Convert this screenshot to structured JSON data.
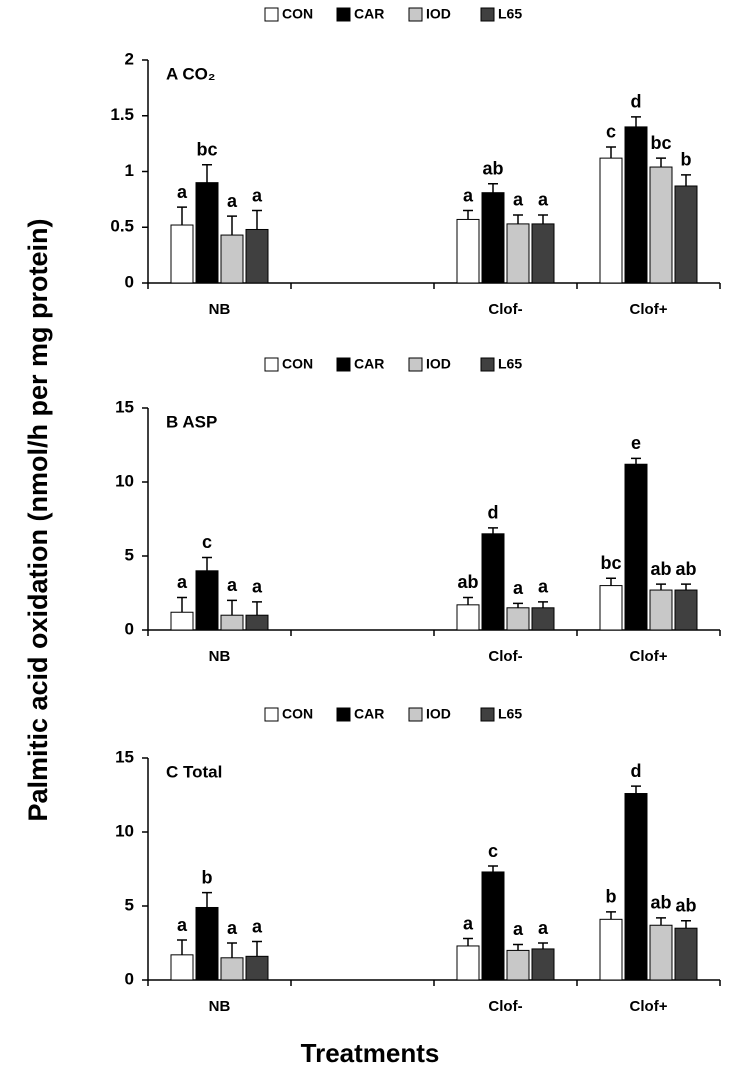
{
  "axis_titles": {
    "y": "Palmitic acid oxidation (nmol/h per mg protein)",
    "x": "Treatments"
  },
  "chart_data": [
    {
      "type": "bar",
      "title": "A CO₂",
      "categories": [
        "NB",
        null,
        "Clof-",
        "Clof+"
      ],
      "ylim": [
        0,
        2
      ],
      "yticks": [
        0,
        0.5,
        1,
        1.5,
        2
      ],
      "series": [
        {
          "name": "CON",
          "color": "#ffffff",
          "values": [
            0.52,
            null,
            0.57,
            1.12
          ],
          "errors": [
            0.16,
            null,
            0.08,
            0.1
          ],
          "letters": [
            "a",
            null,
            "a",
            "c"
          ]
        },
        {
          "name": "CAR",
          "color": "#000000",
          "values": [
            0.9,
            null,
            0.81,
            1.4
          ],
          "errors": [
            0.16,
            null,
            0.08,
            0.09
          ],
          "letters": [
            "bc",
            null,
            "ab",
            "d"
          ]
        },
        {
          "name": "IOD",
          "color": "#c8c8c8",
          "values": [
            0.43,
            null,
            0.53,
            1.04
          ],
          "errors": [
            0.17,
            null,
            0.08,
            0.08
          ],
          "letters": [
            "a",
            null,
            "a",
            "bc"
          ]
        },
        {
          "name": "L65",
          "color": "#404040",
          "values": [
            0.48,
            null,
            0.53,
            0.87
          ],
          "errors": [
            0.17,
            null,
            0.08,
            0.1
          ],
          "letters": [
            "a",
            null,
            "a",
            "b"
          ]
        }
      ]
    },
    {
      "type": "bar",
      "title": "B ASP",
      "categories": [
        "NB",
        null,
        "Clof-",
        "Clof+"
      ],
      "ylim": [
        0,
        15
      ],
      "yticks": [
        0,
        5,
        10,
        15
      ],
      "series": [
        {
          "name": "CON",
          "color": "#ffffff",
          "values": [
            1.2,
            null,
            1.7,
            3.0
          ],
          "errors": [
            1.0,
            null,
            0.5,
            0.5
          ],
          "letters": [
            "a",
            null,
            "ab",
            "bc"
          ]
        },
        {
          "name": "CAR",
          "color": "#000000",
          "values": [
            4.0,
            null,
            6.5,
            11.2
          ],
          "errors": [
            0.9,
            null,
            0.4,
            0.4
          ],
          "letters": [
            "c",
            null,
            "d",
            "e"
          ]
        },
        {
          "name": "IOD",
          "color": "#c8c8c8",
          "values": [
            1.0,
            null,
            1.5,
            2.7
          ],
          "errors": [
            1.0,
            null,
            0.3,
            0.4
          ],
          "letters": [
            "a",
            null,
            "a",
            "ab"
          ]
        },
        {
          "name": "L65",
          "color": "#404040",
          "values": [
            1.0,
            null,
            1.5,
            2.7
          ],
          "errors": [
            0.9,
            null,
            0.4,
            0.4
          ],
          "letters": [
            "a",
            null,
            "a",
            "ab"
          ]
        }
      ]
    },
    {
      "type": "bar",
      "title": "C Total",
      "categories": [
        "NB",
        null,
        "Clof-",
        "Clof+"
      ],
      "ylim": [
        0,
        15
      ],
      "yticks": [
        0,
        5,
        10,
        15
      ],
      "series": [
        {
          "name": "CON",
          "color": "#ffffff",
          "values": [
            1.7,
            null,
            2.3,
            4.1
          ],
          "errors": [
            1.0,
            null,
            0.5,
            0.5
          ],
          "letters": [
            "a",
            null,
            "a",
            "b"
          ]
        },
        {
          "name": "CAR",
          "color": "#000000",
          "values": [
            4.9,
            null,
            7.3,
            12.6
          ],
          "errors": [
            1.0,
            null,
            0.4,
            0.5
          ],
          "letters": [
            "b",
            null,
            "c",
            "d"
          ]
        },
        {
          "name": "IOD",
          "color": "#c8c8c8",
          "values": [
            1.5,
            null,
            2.0,
            3.7
          ],
          "errors": [
            1.0,
            null,
            0.4,
            0.5
          ],
          "letters": [
            "a",
            null,
            "a",
            "ab"
          ]
        },
        {
          "name": "L65",
          "color": "#404040",
          "values": [
            1.6,
            null,
            2.1,
            3.5
          ],
          "errors": [
            1.0,
            null,
            0.4,
            0.5
          ],
          "letters": [
            "a",
            null,
            "a",
            "ab"
          ]
        }
      ]
    }
  ]
}
